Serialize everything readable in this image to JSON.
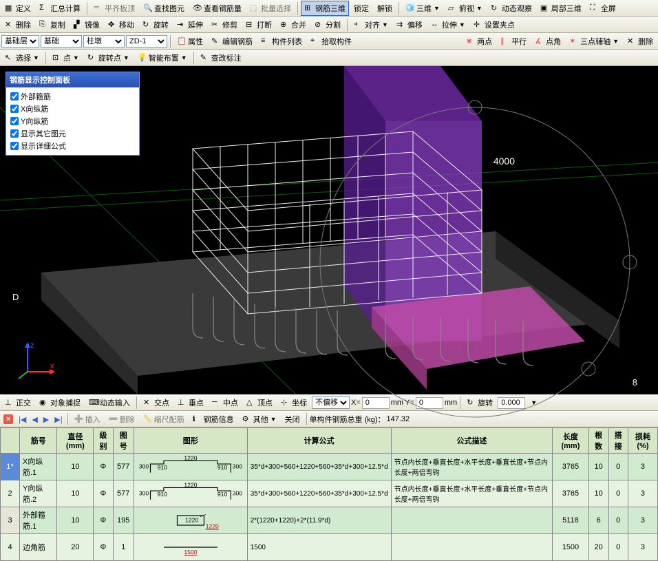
{
  "toolbar1": {
    "define": "定义",
    "total": "汇总计算",
    "flat": "平齐板顶",
    "find": "查找图元",
    "rebar_view": "查看钢筋量",
    "batch": "批量选择",
    "steel3d": "钢筋三维",
    "lock": "锁定",
    "unlock": "解锁",
    "threed": "三维",
    "top": "俯视",
    "dyn": "动态观察",
    "local3d": "局部三维",
    "full": "全屏"
  },
  "toolbar2": {
    "del": "删除",
    "copy": "复制",
    "mirror": "镜像",
    "move": "移动",
    "rotate": "旋转",
    "extend": "延伸",
    "trim": "修剪",
    "break": "打断",
    "merge": "合并",
    "split": "分割",
    "align": "对齐",
    "offset": "偏移",
    "stretch": "拉伸",
    "setpt": "设置夹点"
  },
  "toolbar3": {
    "layer_label": "基础层",
    "layer_sel": "基础",
    "col_sel": "柱墩",
    "num_sel": "ZD-1",
    "attr": "属性",
    "editrebar": "编辑钢筋",
    "list": "构件列表",
    "pick": "拾取构件",
    "twopt": "两点",
    "parallel": "平行",
    "ptangle": "点角",
    "threept": "三点辅轴",
    "delaxis": "删除"
  },
  "toolbar4": {
    "select": "选择",
    "pt": "点",
    "rotpt": "旋转点",
    "smart": "智能布置",
    "modlabel": "查改标注"
  },
  "panel": {
    "title": "钢筋显示控制面板",
    "items": [
      "外部箍筋",
      "X向纵筋",
      "Y向纵筋",
      "显示其它图元",
      "显示详细公式"
    ]
  },
  "viewport": {
    "d_label": "D",
    "eight_label": "8",
    "dim_label": "4000"
  },
  "status": {
    "ortho": "正交",
    "snap": "对象捕捉",
    "dyninput": "动态输入",
    "xpt": "交点",
    "perp": "垂点",
    "mid": "中点",
    "top": "顶点",
    "coord": "坐标",
    "nooffset": "不偏移",
    "x": "X=",
    "y": "Y=",
    "mm1": "mm",
    "mm2": "mm",
    "rot": "旋转",
    "rotval": "0.000",
    "zero": "0"
  },
  "nav": {
    "insert": "插入",
    "del": "删除",
    "scale": "缩尺配筋",
    "info": "钢筋信息",
    "other": "其他",
    "close": "关闭",
    "weight_label": "单构件钢筋总重 (kg)：",
    "weight_val": "147.32"
  },
  "table": {
    "headers": [
      "筋号",
      "直径(mm)",
      "级别",
      "图号",
      "图形",
      "计算公式",
      "公式描述",
      "长度(mm)",
      "根数",
      "搭接",
      "损耗(%)"
    ],
    "rows": [
      {
        "n": "1*",
        "name": "X向纵筋.1",
        "dia": "10",
        "grade": "Φ",
        "code": "577",
        "formula": "35*d+300+560+1220+560+35*d+300+12.5*d",
        "desc": "节点内长度+垂直长度+水平长度+垂直长度+节点内长度+两倍弯钩",
        "len": "3765",
        "count": "10",
        "lap": "0",
        "loss": "3",
        "shape": {
          "a": "300",
          "b": "910",
          "c": "1220",
          "d": "910",
          "e": "300"
        }
      },
      {
        "n": "2",
        "name": "Y向纵筋.2",
        "dia": "10",
        "grade": "Φ",
        "code": "577",
        "formula": "35*d+300+560+1220+560+35*d+300+12.5*d",
        "desc": "节点内长度+垂直长度+水平长度+垂直长度+节点内长度+两倍弯钩",
        "len": "3765",
        "count": "10",
        "lap": "0",
        "loss": "3",
        "shape": {
          "a": "300",
          "b": "910",
          "c": "1220",
          "d": "910",
          "e": "300"
        }
      },
      {
        "n": "3",
        "name": "外部箍筋.1",
        "dia": "10",
        "grade": "Φ",
        "code": "195",
        "formula": "2*(1220+1220)+2*(11.9*d)",
        "desc": "",
        "len": "5118",
        "count": "6",
        "lap": "0",
        "loss": "3",
        "shape": {
          "rect": "1220"
        }
      },
      {
        "n": "4",
        "name": "边角筋",
        "dia": "20",
        "grade": "Φ",
        "code": "1",
        "formula": "1500",
        "desc": "",
        "len": "1500",
        "count": "20",
        "lap": "0",
        "loss": "3",
        "shape": {
          "line": "1500"
        }
      }
    ]
  }
}
